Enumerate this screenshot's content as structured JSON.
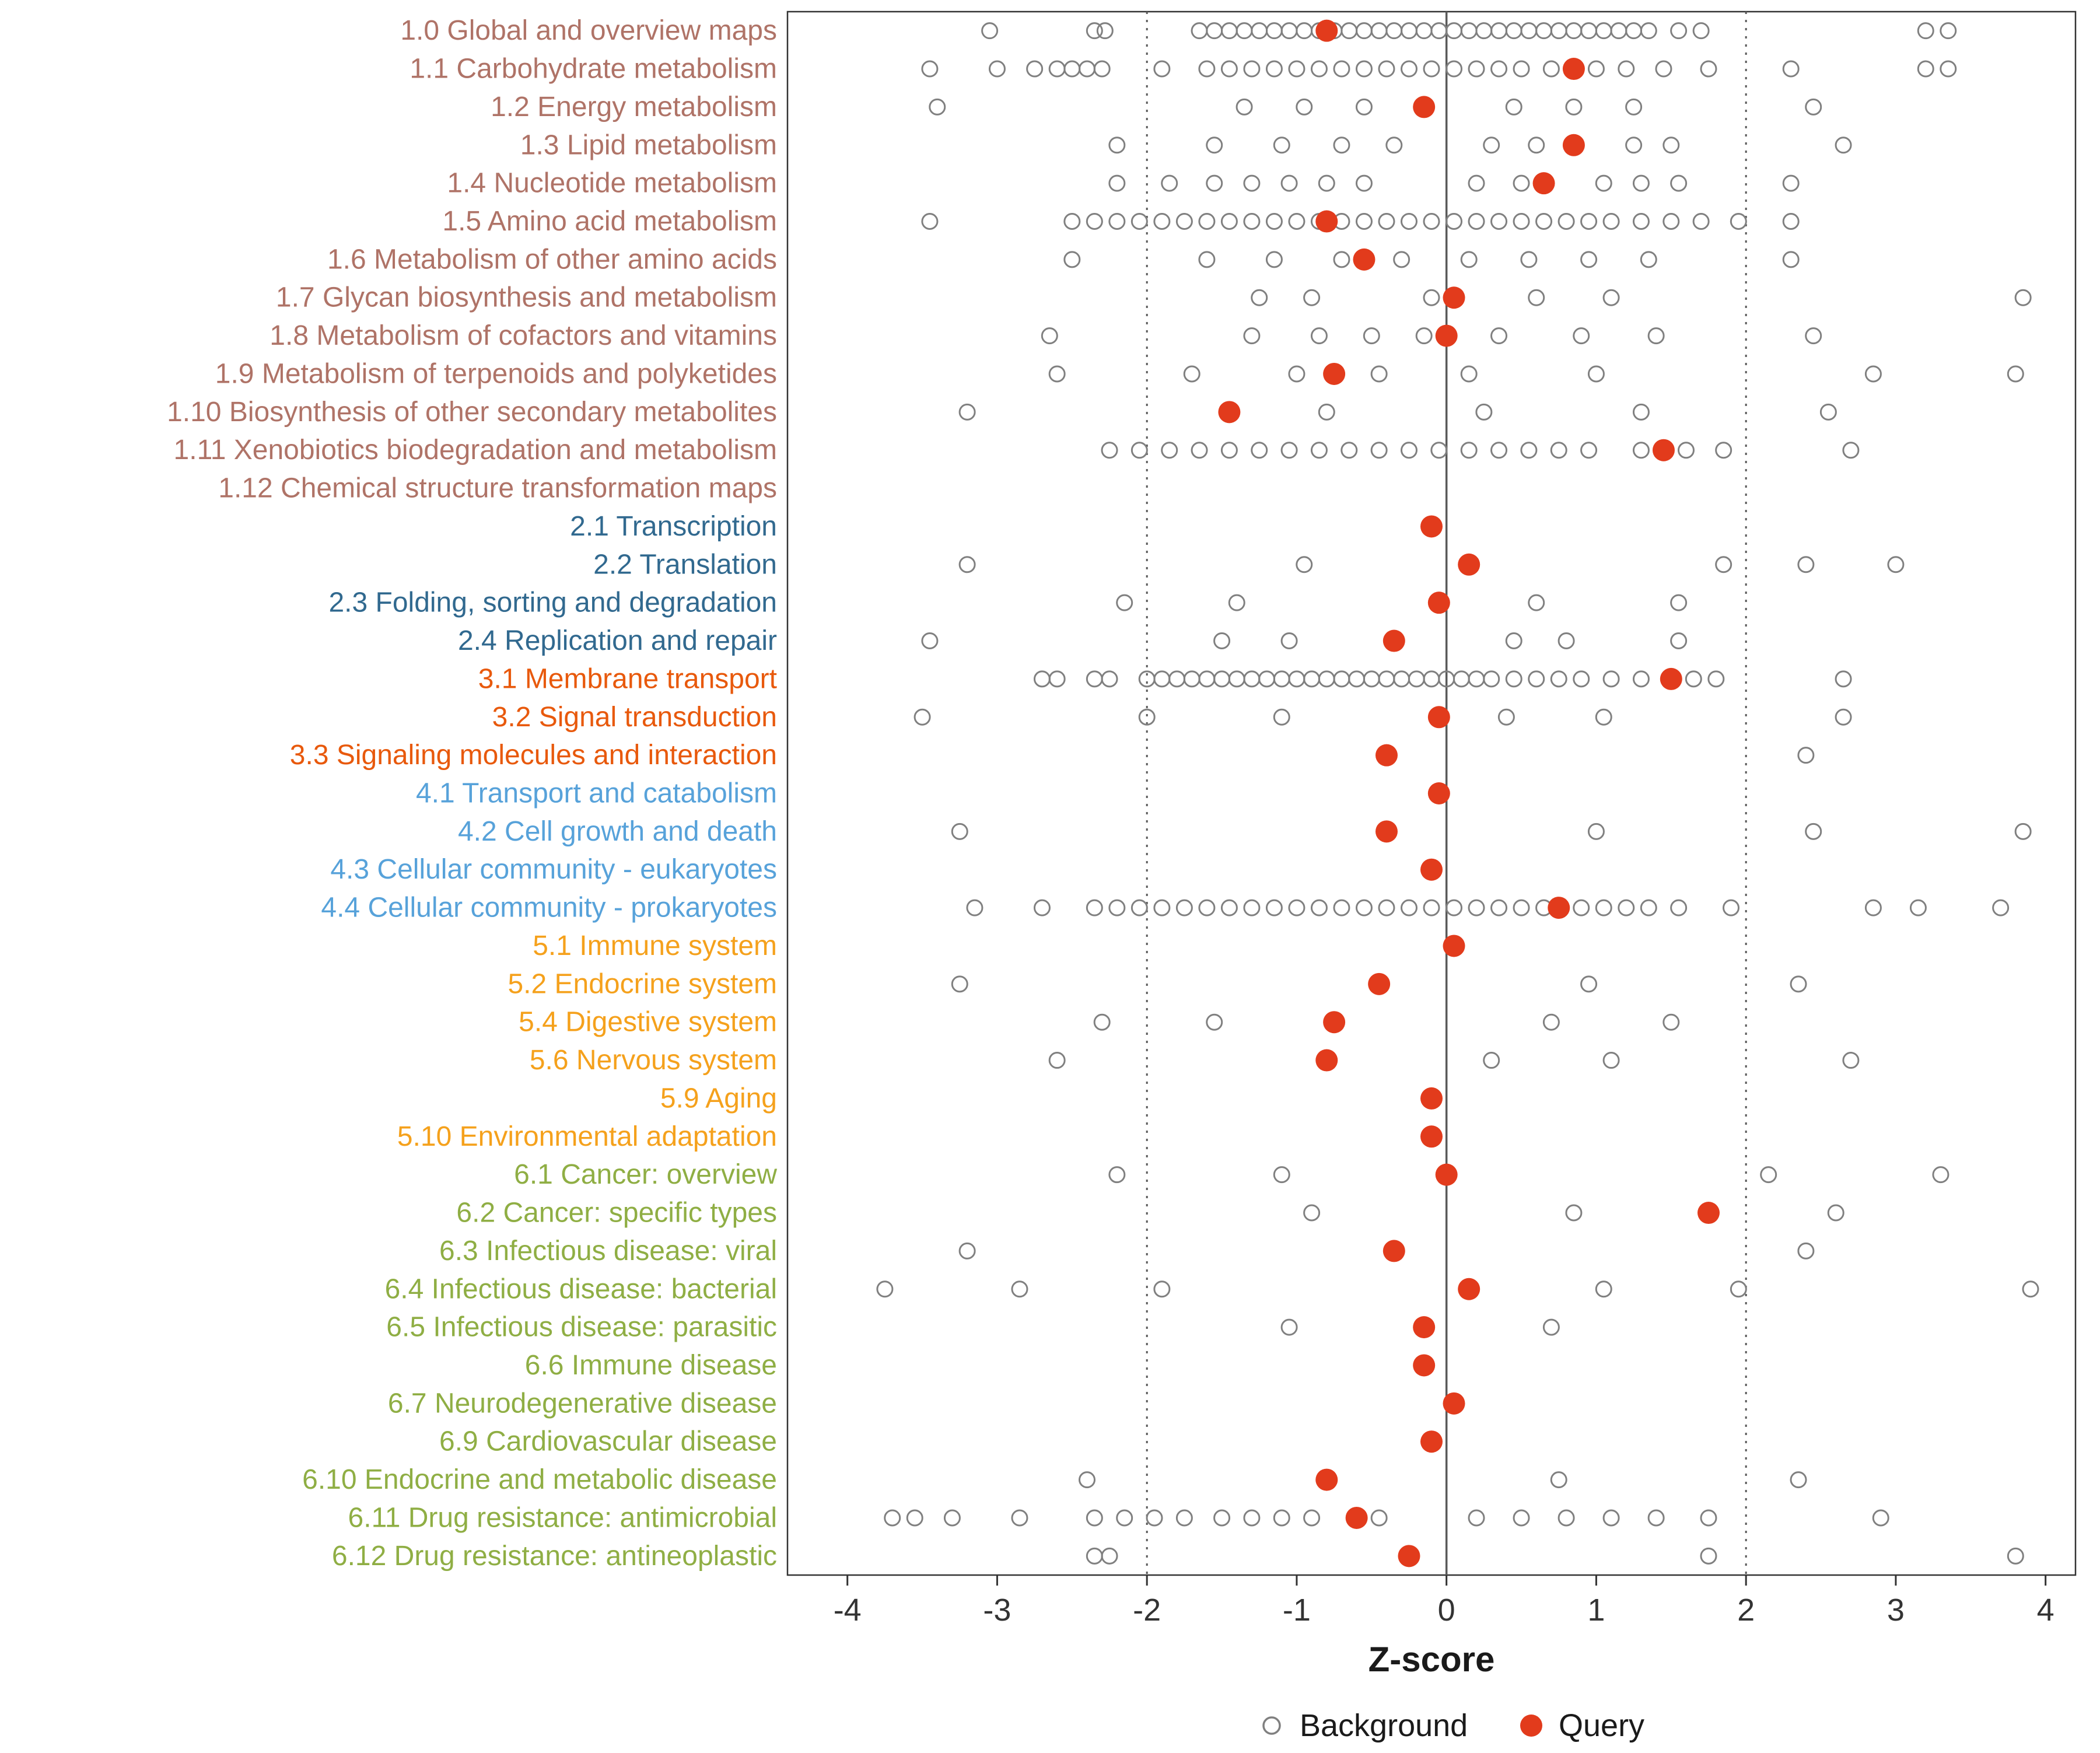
{
  "chart_data": {
    "type": "scatter",
    "title": "",
    "xlabel": "Z-score",
    "xlim": [
      -4.4,
      4.2
    ],
    "xticks": [
      -4,
      -3,
      -2,
      -1,
      0,
      1,
      2,
      3,
      4
    ],
    "reference_lines": {
      "solid": [
        0
      ],
      "dotted": [
        -2,
        2
      ]
    },
    "legend": [
      {
        "name": "Background",
        "style": "open-circle",
        "color": "#808080"
      },
      {
        "name": "Query",
        "style": "filled-circle",
        "color": "#E23B1C"
      }
    ],
    "group_colors": {
      "metabolism": "#AF7367",
      "genetic_info": "#31698F",
      "env_info": "#E8590C",
      "cellular": "#57A2DA",
      "organismal": "#F5A11C",
      "disease": "#8FAE44"
    },
    "point_colors": {
      "background": "#808080",
      "query": "#E23B1C"
    },
    "rows": [
      {
        "label": "1.0 Global and overview maps",
        "group": "metabolism",
        "background": [
          -3.05,
          -2.35,
          -2.28,
          -1.65,
          -1.55,
          -1.45,
          -1.35,
          -1.25,
          -1.15,
          -1.05,
          -0.95,
          -0.85,
          -0.75,
          -0.65,
          -0.55,
          -0.45,
          -0.35,
          -0.25,
          -0.15,
          -0.05,
          0.05,
          0.15,
          0.25,
          0.35,
          0.45,
          0.55,
          0.65,
          0.75,
          0.85,
          0.95,
          1.05,
          1.15,
          1.25,
          1.35,
          1.55,
          1.7,
          3.2,
          3.35
        ],
        "query": -0.8
      },
      {
        "label": "1.1 Carbohydrate metabolism",
        "group": "metabolism",
        "background": [
          -3.45,
          -3.0,
          -2.75,
          -2.6,
          -2.5,
          -2.4,
          -2.3,
          -1.9,
          -1.6,
          -1.45,
          -1.3,
          -1.15,
          -1.0,
          -0.85,
          -0.7,
          -0.55,
          -0.4,
          -0.25,
          -0.1,
          0.05,
          0.2,
          0.35,
          0.5,
          0.7,
          1.0,
          1.2,
          1.45,
          1.75,
          2.3,
          3.2,
          3.35
        ],
        "query": 0.85
      },
      {
        "label": "1.2 Energy metabolism",
        "group": "metabolism",
        "background": [
          -3.4,
          -1.35,
          -0.95,
          -0.55,
          0.45,
          0.85,
          1.25,
          2.45
        ],
        "query": -0.15
      },
      {
        "label": "1.3 Lipid metabolism",
        "group": "metabolism",
        "background": [
          -2.2,
          -1.55,
          -1.1,
          -0.7,
          -0.35,
          0.3,
          0.6,
          1.25,
          1.5,
          2.65
        ],
        "query": 0.85
      },
      {
        "label": "1.4 Nucleotide metabolism",
        "group": "metabolism",
        "background": [
          -2.2,
          -1.85,
          -1.55,
          -1.3,
          -1.05,
          -0.8,
          -0.55,
          0.2,
          0.5,
          1.05,
          1.3,
          1.55,
          2.3
        ],
        "query": 0.65
      },
      {
        "label": "1.5 Amino acid metabolism",
        "group": "metabolism",
        "background": [
          -3.45,
          -2.5,
          -2.35,
          -2.2,
          -2.05,
          -1.9,
          -1.75,
          -1.6,
          -1.45,
          -1.3,
          -1.15,
          -1.0,
          -0.85,
          -0.7,
          -0.55,
          -0.4,
          -0.25,
          -0.1,
          0.05,
          0.2,
          0.35,
          0.5,
          0.65,
          0.8,
          0.95,
          1.1,
          1.3,
          1.5,
          1.7,
          1.95,
          2.3
        ],
        "query": -0.8
      },
      {
        "label": "1.6 Metabolism of other amino acids",
        "group": "metabolism",
        "background": [
          -2.5,
          -1.6,
          -1.15,
          -0.7,
          -0.3,
          0.15,
          0.55,
          0.95,
          1.35,
          2.3
        ],
        "query": -0.55
      },
      {
        "label": "1.7 Glycan biosynthesis and metabolism",
        "group": "metabolism",
        "background": [
          -1.25,
          -0.9,
          -0.1,
          0.6,
          1.1,
          3.85
        ],
        "query": 0.05
      },
      {
        "label": "1.8 Metabolism of cofactors and vitamins",
        "group": "metabolism",
        "background": [
          -2.65,
          -1.3,
          -0.85,
          -0.5,
          -0.15,
          0.35,
          0.9,
          1.4,
          2.45
        ],
        "query": 0.0
      },
      {
        "label": "1.9 Metabolism of terpenoids and polyketides",
        "group": "metabolism",
        "background": [
          -2.6,
          -1.7,
          -1.0,
          -0.45,
          0.15,
          1.0,
          2.85,
          3.8
        ],
        "query": -0.75
      },
      {
        "label": "1.10 Biosynthesis of other secondary metabolites",
        "group": "metabolism",
        "background": [
          -3.2,
          -0.8,
          0.25,
          1.3,
          2.55
        ],
        "query": -1.45
      },
      {
        "label": "1.11 Xenobiotics biodegradation and metabolism",
        "group": "metabolism",
        "background": [
          -2.25,
          -2.05,
          -1.85,
          -1.65,
          -1.45,
          -1.25,
          -1.05,
          -0.85,
          -0.65,
          -0.45,
          -0.25,
          -0.05,
          0.15,
          0.35,
          0.55,
          0.75,
          0.95,
          1.3,
          1.6,
          1.85,
          2.7
        ],
        "query": 1.45
      },
      {
        "label": "1.12 Chemical structure transformation maps",
        "group": "metabolism",
        "background": [],
        "query": null
      },
      {
        "label": "2.1 Transcription",
        "group": "genetic_info",
        "background": [],
        "query": -0.1
      },
      {
        "label": "2.2 Translation",
        "group": "genetic_info",
        "background": [
          -3.2,
          -0.95,
          1.85,
          2.4,
          3.0
        ],
        "query": 0.15
      },
      {
        "label": "2.3 Folding, sorting and degradation",
        "group": "genetic_info",
        "background": [
          -2.15,
          -1.4,
          0.6,
          1.55
        ],
        "query": -0.05
      },
      {
        "label": "2.4 Replication and repair",
        "group": "genetic_info",
        "background": [
          -3.45,
          -1.5,
          -1.05,
          0.45,
          0.8,
          1.55
        ],
        "query": -0.35
      },
      {
        "label": "3.1 Membrane transport",
        "group": "env_info",
        "background": [
          -2.7,
          -2.6,
          -2.35,
          -2.25,
          -2.0,
          -1.9,
          -1.8,
          -1.7,
          -1.6,
          -1.5,
          -1.4,
          -1.3,
          -1.2,
          -1.1,
          -1.0,
          -0.9,
          -0.8,
          -0.7,
          -0.6,
          -0.5,
          -0.4,
          -0.3,
          -0.2,
          -0.1,
          0.0,
          0.1,
          0.2,
          0.3,
          0.45,
          0.6,
          0.75,
          0.9,
          1.1,
          1.3,
          1.65,
          1.8,
          2.65
        ],
        "query": 1.5
      },
      {
        "label": "3.2 Signal transduction",
        "group": "env_info",
        "background": [
          -3.5,
          -2.0,
          -1.1,
          0.4,
          1.05,
          2.65
        ],
        "query": -0.05
      },
      {
        "label": "3.3 Signaling molecules and interaction",
        "group": "env_info",
        "background": [
          2.4
        ],
        "query": -0.4
      },
      {
        "label": "4.1 Transport and catabolism",
        "group": "cellular",
        "background": [],
        "query": -0.05
      },
      {
        "label": "4.2 Cell growth and death",
        "group": "cellular",
        "background": [
          -3.25,
          1.0,
          2.45,
          3.85
        ],
        "query": -0.4
      },
      {
        "label": "4.3 Cellular community - eukaryotes",
        "group": "cellular",
        "background": [],
        "query": -0.1
      },
      {
        "label": "4.4 Cellular community - prokaryotes",
        "group": "cellular",
        "background": [
          -3.15,
          -2.7,
          -2.35,
          -2.2,
          -2.05,
          -1.9,
          -1.75,
          -1.6,
          -1.45,
          -1.3,
          -1.15,
          -1.0,
          -0.85,
          -0.7,
          -0.55,
          -0.4,
          -0.25,
          -0.1,
          0.05,
          0.2,
          0.35,
          0.5,
          0.65,
          0.9,
          1.05,
          1.2,
          1.35,
          1.55,
          1.9,
          2.85,
          3.15,
          3.7
        ],
        "query": 0.75
      },
      {
        "label": "5.1 Immune system",
        "group": "organismal",
        "background": [],
        "query": 0.05
      },
      {
        "label": "5.2 Endocrine system",
        "group": "organismal",
        "background": [
          -3.25,
          0.95,
          2.35
        ],
        "query": -0.45
      },
      {
        "label": "5.4 Digestive system",
        "group": "organismal",
        "background": [
          -2.3,
          -1.55,
          0.7,
          1.5
        ],
        "query": -0.75
      },
      {
        "label": "5.6 Nervous system",
        "group": "organismal",
        "background": [
          -2.6,
          0.3,
          1.1,
          2.7
        ],
        "query": -0.8
      },
      {
        "label": "5.9 Aging",
        "group": "organismal",
        "background": [],
        "query": -0.1
      },
      {
        "label": "5.10 Environmental adaptation",
        "group": "organismal",
        "background": [],
        "query": -0.1
      },
      {
        "label": "6.1 Cancer: overview",
        "group": "disease",
        "background": [
          -2.2,
          -1.1,
          2.15,
          3.3
        ],
        "query": 0.0
      },
      {
        "label": "6.2 Cancer: specific types",
        "group": "disease",
        "background": [
          -0.9,
          0.85,
          2.6
        ],
        "query": 1.75
      },
      {
        "label": "6.3 Infectious disease: viral",
        "group": "disease",
        "background": [
          -3.2,
          2.4
        ],
        "query": -0.35
      },
      {
        "label": "6.4 Infectious disease: bacterial",
        "group": "disease",
        "background": [
          -3.75,
          -2.85,
          -1.9,
          1.05,
          1.95,
          3.9
        ],
        "query": 0.15
      },
      {
        "label": "6.5 Infectious disease: parasitic",
        "group": "disease",
        "background": [
          -1.05,
          0.7
        ],
        "query": -0.15
      },
      {
        "label": "6.6 Immune disease",
        "group": "disease",
        "background": [],
        "query": -0.15
      },
      {
        "label": "6.7 Neurodegenerative disease",
        "group": "disease",
        "background": [],
        "query": 0.05
      },
      {
        "label": "6.9 Cardiovascular disease",
        "group": "disease",
        "background": [],
        "query": -0.1
      },
      {
        "label": "6.10 Endocrine and metabolic disease",
        "group": "disease",
        "background": [
          -2.4,
          0.75,
          2.35
        ],
        "query": -0.8
      },
      {
        "label": "6.11 Drug resistance: antimicrobial",
        "group": "disease",
        "background": [
          -3.7,
          -3.55,
          -3.3,
          -2.85,
          -2.35,
          -2.15,
          -1.95,
          -1.75,
          -1.5,
          -1.3,
          -1.1,
          -0.9,
          -0.45,
          0.2,
          0.5,
          0.8,
          1.1,
          1.4,
          1.75,
          2.9
        ],
        "query": -0.6
      },
      {
        "label": "6.12 Drug resistance: antineoplastic",
        "group": "disease",
        "background": [
          -2.35,
          -2.25,
          1.75,
          3.8
        ],
        "query": -0.25
      }
    ]
  },
  "colors": {
    "axis_text": "#333333",
    "panel_border": "#333333",
    "zero_line": "#595959",
    "ref_line": "#595959",
    "background_point_stroke": "#808080",
    "query_point_fill": "#E23B1C"
  }
}
